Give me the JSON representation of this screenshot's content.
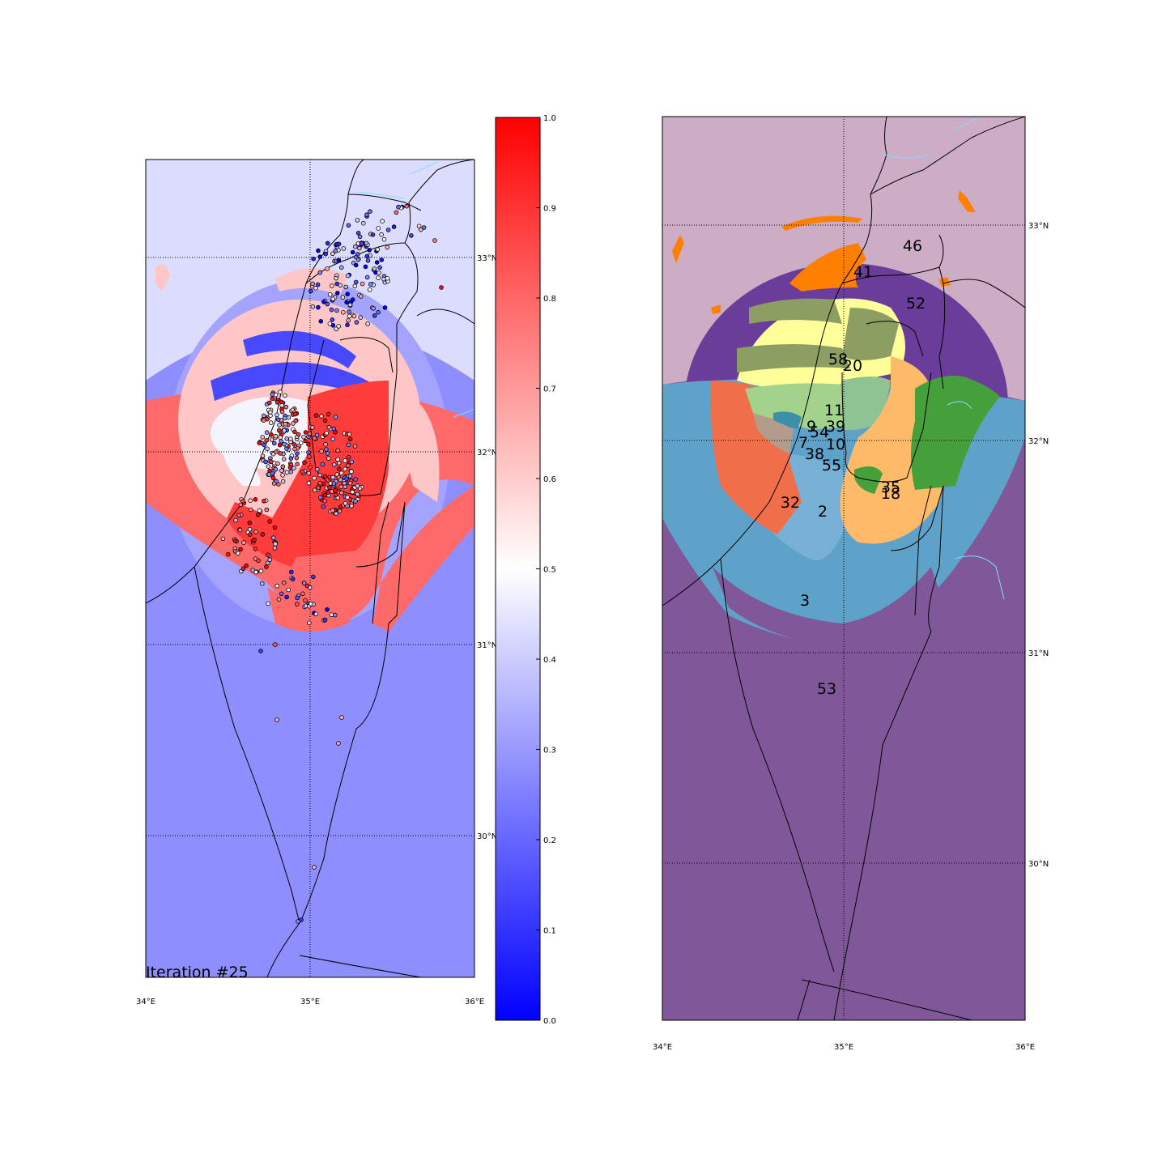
{
  "iteration_label": "Iteration #25",
  "left_map": {
    "lon_ticks": [
      "34°E",
      "35°E",
      "36°E"
    ],
    "lat_ticks": [
      "33°N",
      "32°N",
      "31°N",
      "30°N"
    ],
    "colors": {
      "background": "#dcdcfe",
      "low_zone": "#8e8efe",
      "red": "#fe3c3c",
      "salmon": "#fe6a6a",
      "pink": "#fec6c6",
      "blue": "#4848fe",
      "light_blue": "#a4a4fe",
      "white": "#f4f4fe",
      "land_border": "#000000",
      "river": "#7fdfff"
    }
  },
  "colorbar": {
    "ticks": [
      "0.0",
      "0.1",
      "0.2",
      "0.3",
      "0.4",
      "0.5",
      "0.6",
      "0.7",
      "0.8",
      "0.9",
      "1.0"
    ],
    "stops": [
      "#0000ff",
      "#ffffff",
      "#ff0000"
    ]
  },
  "right_map": {
    "lon_ticks": [
      "34°E",
      "35°E",
      "36°E"
    ],
    "lat_ticks": [
      "33°N",
      "32°N",
      "31°N",
      "30°N"
    ],
    "region_labels": [
      "46",
      "41",
      "52",
      "58",
      "20",
      "11",
      "9",
      "39",
      "54",
      "7",
      "10",
      "38",
      "55",
      "35",
      "18",
      "32",
      "2",
      "3",
      "53"
    ],
    "colors": {
      "mauve": "#ccadc5",
      "dark_purple": "#6a3d9a",
      "purple_53": "#80589a",
      "steel_blue": "#5fa2c9",
      "light_blue": "#79b1d6",
      "orange_41": "#ff7f00",
      "yellow": "#ffff99",
      "olive": "#8c9e62",
      "light_green": "#a3d28d",
      "mint": "#8fc393",
      "sand": "#fdbb69",
      "green": "#45a03b",
      "coral": "#f06e4a",
      "teal": "#3b8fa8",
      "grey_tan": "#b49c8c"
    }
  }
}
